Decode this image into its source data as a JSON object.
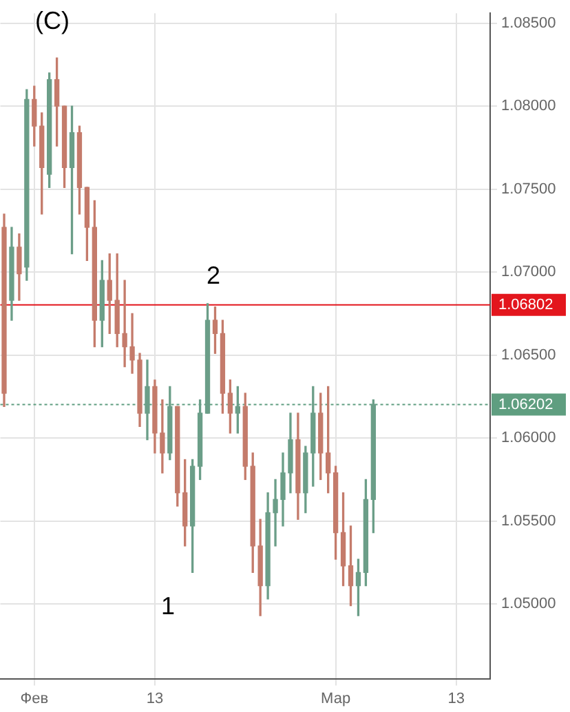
{
  "chart_data": {
    "type": "candlestick",
    "categories": [
      null,
      null,
      null,
      null,
      "Фев",
      null,
      null,
      null,
      null,
      null,
      null,
      null,
      null,
      null,
      null,
      null,
      null,
      null,
      null,
      null,
      "13",
      null,
      null,
      null,
      null,
      null,
      null,
      null,
      null,
      null,
      null,
      null,
      null,
      null,
      null,
      null,
      null,
      null,
      null,
      null,
      null,
      null,
      null,
      null,
      "Мар",
      null,
      null,
      null,
      null,
      null,
      null,
      null,
      null,
      null,
      null,
      null,
      null,
      null,
      null,
      null,
      "13",
      null,
      null,
      null,
      null
    ],
    "ohlc": [
      [
        1.0727,
        1.0735,
        1.0619,
        1.0627
      ],
      [
        1.0683,
        1.0727,
        1.0671,
        1.0715
      ],
      [
        1.0715,
        1.0723,
        1.0683,
        1.0699
      ],
      [
        1.0703,
        1.081,
        1.0695,
        1.0804
      ],
      [
        1.0804,
        1.0812,
        1.0776,
        1.0788
      ],
      [
        1.0788,
        1.0796,
        1.0735,
        1.0763
      ],
      [
        1.0759,
        1.082,
        1.0751,
        1.0816
      ],
      [
        1.0816,
        1.0829,
        1.0776,
        1.08
      ],
      [
        1.08,
        1.08,
        1.0751,
        1.0763
      ],
      [
        1.0763,
        1.08,
        1.0711,
        1.0784
      ],
      [
        1.0784,
        1.0788,
        1.0735,
        1.0751
      ],
      [
        1.0751,
        1.0751,
        1.0707,
        1.0727
      ],
      [
        1.0727,
        1.0743,
        1.0655,
        1.0671
      ],
      [
        1.0671,
        1.0707,
        1.0655,
        1.0695
      ],
      [
        1.0695,
        1.0711,
        1.0663,
        1.0683
      ],
      [
        1.0683,
        1.0711,
        1.0655,
        1.0663
      ],
      [
        1.0663,
        1.0695,
        1.0643,
        1.0655
      ],
      [
        1.0655,
        1.0675,
        1.0639,
        1.0647
      ],
      [
        1.0647,
        1.0651,
        1.0607,
        1.0615
      ],
      [
        1.0615,
        1.0647,
        1.0599,
        1.0631
      ],
      [
        1.0631,
        1.0635,
        1.0591,
        1.0603
      ],
      [
        1.0603,
        1.0623,
        1.0579,
        1.0591
      ],
      [
        1.0591,
        1.0631,
        1.0587,
        1.0619
      ],
      [
        1.0619,
        1.0619,
        1.0559,
        1.0567
      ],
      [
        1.0567,
        1.0587,
        1.0535,
        1.0547
      ],
      [
        1.0547,
        1.0587,
        1.0519,
        1.0583
      ],
      [
        1.0583,
        1.0623,
        1.0575,
        1.0615
      ],
      [
        1.0615,
        1.0681,
        1.0615,
        1.0671
      ],
      [
        1.0671,
        1.0679,
        1.0651,
        1.0663
      ],
      [
        1.0663,
        1.0671,
        1.0615,
        1.0627
      ],
      [
        1.0627,
        1.0635,
        1.0603,
        1.0615
      ],
      [
        1.0615,
        1.0631,
        1.0603,
        1.0619
      ],
      [
        1.0619,
        1.0627,
        1.0575,
        1.0583
      ],
      [
        1.0583,
        1.0591,
        1.0519,
        1.0535
      ],
      [
        1.0535,
        1.0551,
        1.0493,
        1.0511
      ],
      [
        1.0511,
        1.0567,
        1.0503,
        1.0555
      ],
      [
        1.0555,
        1.0575,
        1.0535,
        1.0563
      ],
      [
        1.0563,
        1.0591,
        1.0547,
        1.0579
      ],
      [
        1.0579,
        1.0615,
        1.0567,
        1.0599
      ],
      [
        1.0599,
        1.0615,
        1.0551,
        1.0567
      ],
      [
        1.0567,
        1.0595,
        1.0555,
        1.0591
      ],
      [
        1.0591,
        1.0631,
        1.0571,
        1.0615
      ],
      [
        1.0615,
        1.0627,
        1.0575,
        1.0591
      ],
      [
        1.0591,
        1.0631,
        1.0567,
        1.0579
      ],
      [
        1.0579,
        1.0583,
        1.0527,
        1.0543
      ],
      [
        1.0543,
        1.0567,
        1.0511,
        1.0523
      ],
      [
        1.0523,
        1.0547,
        1.0499,
        1.0511
      ],
      [
        1.0511,
        1.0527,
        1.0493,
        1.0519
      ],
      [
        1.0519,
        1.0575,
        1.0511,
        1.0563
      ],
      [
        1.0563,
        1.0623,
        1.0543,
        1.06202
      ],
      null,
      null,
      null,
      null,
      null,
      null,
      null,
      null,
      null,
      null,
      null,
      null,
      null,
      null,
      null
    ],
    "colors": [
      "#c47b6b",
      "#6b9e88",
      "#c47b6b",
      "#6b9e88",
      "#c47b6b",
      "#c47b6b",
      "#6b9e88",
      "#c47b6b",
      "#c47b6b",
      "#6b9e88",
      "#c47b6b",
      "#c47b6b",
      "#c47b6b",
      "#6b9e88",
      "#c47b6b",
      "#c47b6b",
      "#c47b6b",
      "#c47b6b",
      "#c47b6b",
      "#6b9e88",
      "#c47b6b",
      "#c47b6b",
      "#6b9e88",
      "#c47b6b",
      "#c47b6b",
      "#6b9e88",
      "#6b9e88",
      "#6b9e88",
      "#c47b6b",
      "#c47b6b",
      "#c47b6b",
      "#6b9e88",
      "#c47b6b",
      "#c47b6b",
      "#c47b6b",
      "#6b9e88",
      "#6b9e88",
      "#6b9e88",
      "#6b9e88",
      "#c47b6b",
      "#6b9e88",
      "#6b9e88",
      "#c47b6b",
      "#c47b6b",
      "#c47b6b",
      "#c47b6b",
      "#c47b6b",
      "#6b9e88",
      "#6b9e88",
      "#6b9e88",
      null,
      null,
      null,
      null,
      null,
      null,
      null,
      null,
      null,
      null,
      null,
      null,
      null,
      null,
      null
    ],
    "ylim": [
      1.0455,
      1.0856
    ],
    "yticks": [
      {
        "value": 1.05,
        "label": "1.05000"
      },
      {
        "value": 1.055,
        "label": "1.05500"
      },
      {
        "value": 1.06,
        "label": "1.06000"
      },
      {
        "value": 1.065,
        "label": "1.06500"
      },
      {
        "value": 1.07,
        "label": "1.07000"
      },
      {
        "value": 1.075,
        "label": "1.07500"
      },
      {
        "value": 1.08,
        "label": "1.08000"
      },
      {
        "value": 1.085,
        "label": "1.08500"
      }
    ],
    "grid": true,
    "ref_lines": [
      {
        "axis": "y",
        "value": 1.06802,
        "label": "1.06802",
        "color": "#e3161d",
        "line_style": "solid"
      },
      {
        "axis": "y",
        "value": 1.06202,
        "label": "1.06202",
        "color": "#5f9e80",
        "line_style": "dotted"
      }
    ],
    "annotations": [
      "(C)",
      "2",
      "1"
    ]
  }
}
